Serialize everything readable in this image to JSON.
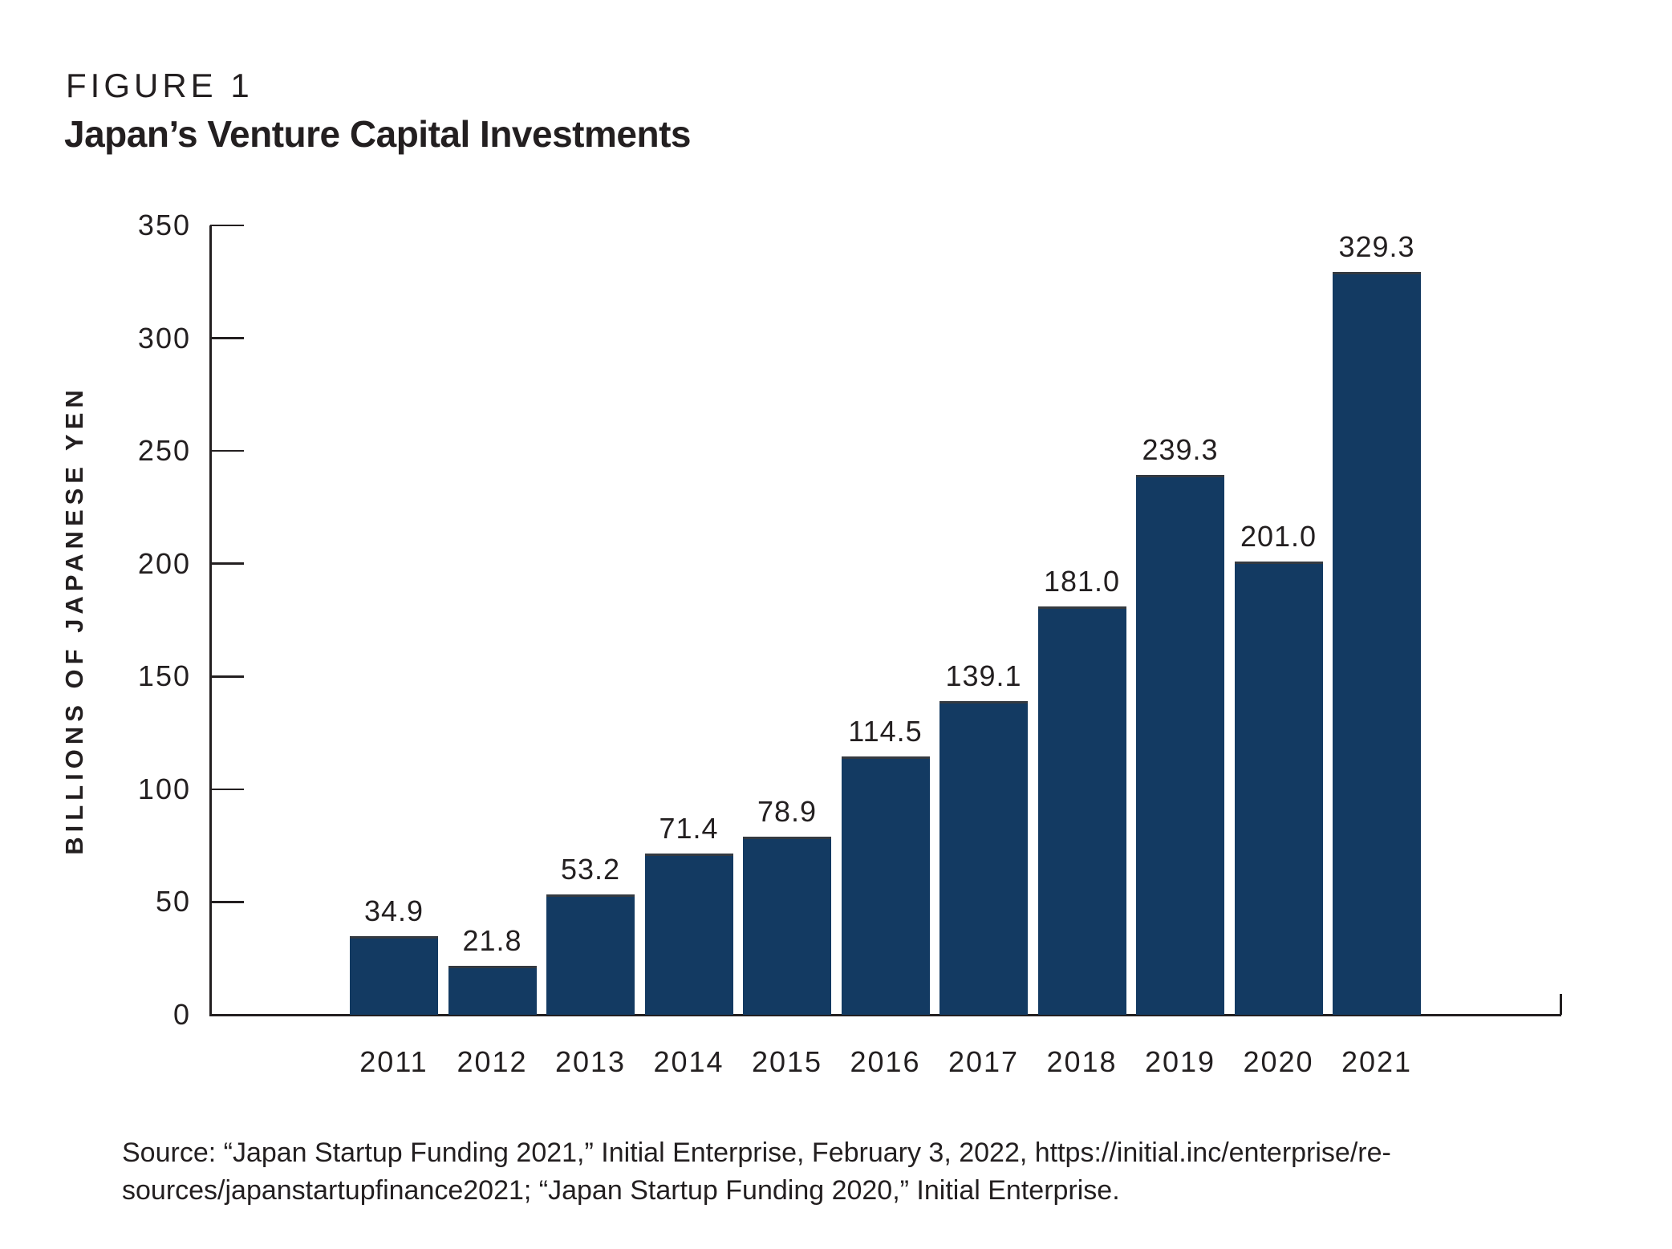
{
  "figure_label": "FIGURE 1",
  "title": "Japan’s Venture Capital Investments",
  "source_lines": [
    "Source: “Japan Startup Funding 2021,” Initial Enterprise, February 3, 2022, https://initial.inc/enterprise/re-",
    "sources/japanstartupfinance2021; “Japan Startup Funding 2020,” Initial Enterprise."
  ],
  "colors": {
    "bar": "#133a62",
    "text": "#231f20",
    "axis": "#231f20"
  },
  "chart_data": {
    "type": "bar",
    "title": "Japan’s Venture Capital Investments",
    "categories": [
      "2011",
      "2012",
      "2013",
      "2014",
      "2015",
      "2016",
      "2017",
      "2018",
      "2019",
      "2020",
      "2021"
    ],
    "values": [
      34.9,
      21.8,
      53.2,
      71.4,
      78.9,
      114.5,
      139.1,
      181.0,
      239.3,
      201.0,
      329.3
    ],
    "value_labels": [
      "34.9",
      "21.8",
      "53.2",
      "71.4",
      "78.9",
      "114.5",
      "139.1",
      "181.0",
      "239.3",
      "201.0",
      "329.3"
    ],
    "xlabel": "",
    "ylabel": "BILLIONS OF JAPANESE YEN",
    "ylim": [
      0,
      350
    ],
    "yticks": [
      0,
      50,
      100,
      150,
      200,
      250,
      300,
      350
    ],
    "grid": false,
    "legend": "none",
    "bar_labels_position": "above"
  }
}
